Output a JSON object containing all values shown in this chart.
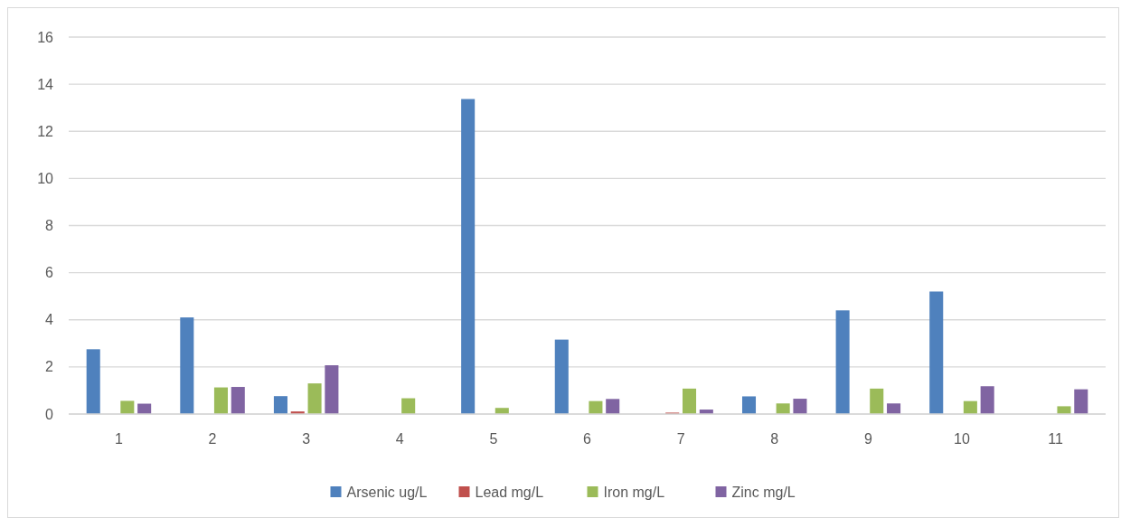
{
  "chart_data": {
    "type": "bar",
    "categories": [
      "1",
      "2",
      "3",
      "4",
      "5",
      "6",
      "7",
      "8",
      "9",
      "10",
      "11"
    ],
    "series": [
      {
        "name": "Arsenic ug/L",
        "color": "#4f81bd",
        "values": [
          2.75,
          4.1,
          0.76,
          0,
          13.37,
          3.16,
          0,
          0.75,
          4.4,
          5.2,
          0
        ]
      },
      {
        "name": "Lead mg/L",
        "color": "#c0504d",
        "values": [
          0,
          0,
          0.11,
          0,
          0,
          0,
          0.06,
          0,
          0,
          0,
          0
        ]
      },
      {
        "name": "Iron mg/L",
        "color": "#9bbb59",
        "values": [
          0.56,
          1.13,
          1.3,
          0.67,
          0.26,
          0.55,
          1.08,
          0.45,
          1.08,
          0.55,
          0.33
        ]
      },
      {
        "name": "Zinc mg/L",
        "color": "#8064a2",
        "values": [
          0.44,
          1.15,
          2.07,
          0,
          0,
          0.64,
          0.19,
          0.65,
          0.45,
          1.18,
          1.05
        ]
      }
    ],
    "ylim": [
      0,
      16
    ],
    "yticks": [
      0,
      2,
      4,
      6,
      8,
      10,
      12,
      14,
      16
    ],
    "grid": "y",
    "legend": "bottom"
  }
}
